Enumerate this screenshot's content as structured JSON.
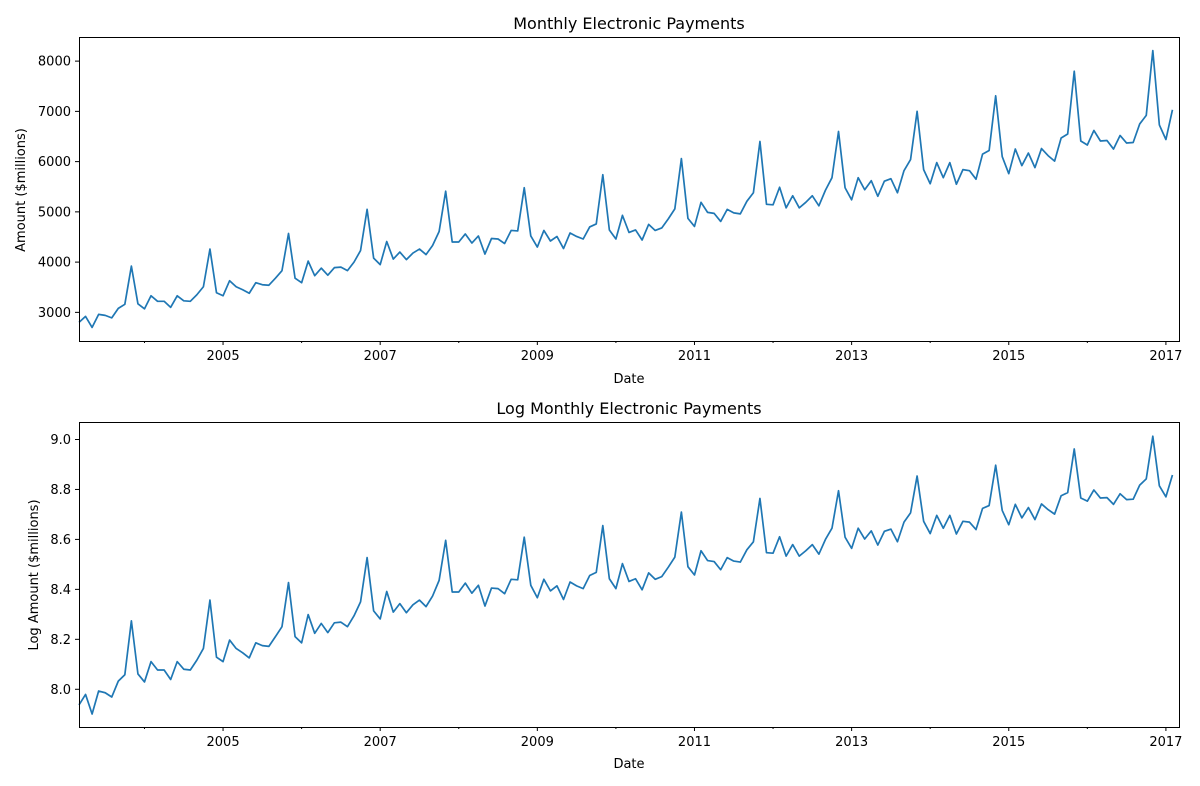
{
  "chart_data": [
    {
      "type": "line",
      "title": "Monthly Electronic Payments",
      "xlabel": "Date",
      "ylabel": "Amount ($millions)",
      "color": "#1f77b4",
      "x_start": "2003-03",
      "x_end": "2017-03",
      "xlim": [
        "2003-03",
        "2017-03"
      ],
      "ylim": [
        2430,
        8480
      ],
      "xticks": [
        "2005",
        "2007",
        "2009",
        "2011",
        "2013",
        "2015",
        "2017"
      ],
      "yticks": [
        "3000",
        "4000",
        "5000",
        "6000",
        "7000",
        "8000"
      ],
      "grid": false,
      "values": [
        2800,
        2920,
        2700,
        2960,
        2940,
        2890,
        3080,
        3160,
        3920,
        3170,
        3070,
        3330,
        3220,
        3220,
        3100,
        3330,
        3230,
        3220,
        3350,
        3510,
        4260,
        3390,
        3330,
        3630,
        3510,
        3450,
        3380,
        3590,
        3550,
        3540,
        3680,
        3830,
        4570,
        3680,
        3590,
        4020,
        3730,
        3880,
        3740,
        3890,
        3900,
        3830,
        4000,
        4230,
        5050,
        4080,
        3950,
        4410,
        4060,
        4200,
        4050,
        4180,
        4260,
        4150,
        4330,
        4610,
        5410,
        4400,
        4400,
        4560,
        4380,
        4520,
        4160,
        4470,
        4460,
        4370,
        4630,
        4620,
        5480,
        4520,
        4300,
        4630,
        4420,
        4510,
        4270,
        4580,
        4510,
        4460,
        4700,
        4760,
        5740,
        4640,
        4460,
        4930,
        4590,
        4640,
        4440,
        4750,
        4630,
        4680,
        4860,
        5060,
        6060,
        4870,
        4710,
        5190,
        4990,
        4970,
        4810,
        5050,
        4980,
        4960,
        5210,
        5380,
        6400,
        5150,
        5140,
        5490,
        5080,
        5320,
        5080,
        5190,
        5320,
        5120,
        5430,
        5680,
        6600,
        5480,
        5240,
        5680,
        5440,
        5620,
        5310,
        5610,
        5660,
        5380,
        5820,
        6040,
        7000,
        5840,
        5560,
        5980,
        5680,
        5980,
        5550,
        5840,
        5820,
        5650,
        6150,
        6220,
        7310,
        6100,
        5760,
        6250,
        5920,
        6170,
        5880,
        6260,
        6120,
        6010,
        6470,
        6550,
        7800,
        6410,
        6330,
        6620,
        6410,
        6420,
        6250,
        6520,
        6370,
        6380,
        6750,
        6920,
        8210,
        6730,
        6440,
        7030
      ]
    },
    {
      "type": "line",
      "title": "Log Monthly Electronic Payments",
      "xlabel": "Date",
      "ylabel": "Log Amount ($millions)",
      "color": "#1f77b4",
      "x_start": "2003-03",
      "x_end": "2017-03",
      "xlim": [
        "2003-03",
        "2017-03"
      ],
      "ylim": [
        7.849,
        9.07
      ],
      "xticks": [
        "2005",
        "2007",
        "2009",
        "2011",
        "2013",
        "2015",
        "2017"
      ],
      "yticks": [
        "8.0",
        "8.2",
        "8.4",
        "8.6",
        "8.8",
        "9.0"
      ],
      "grid": false,
      "transform": "log",
      "source_series": 0
    }
  ]
}
